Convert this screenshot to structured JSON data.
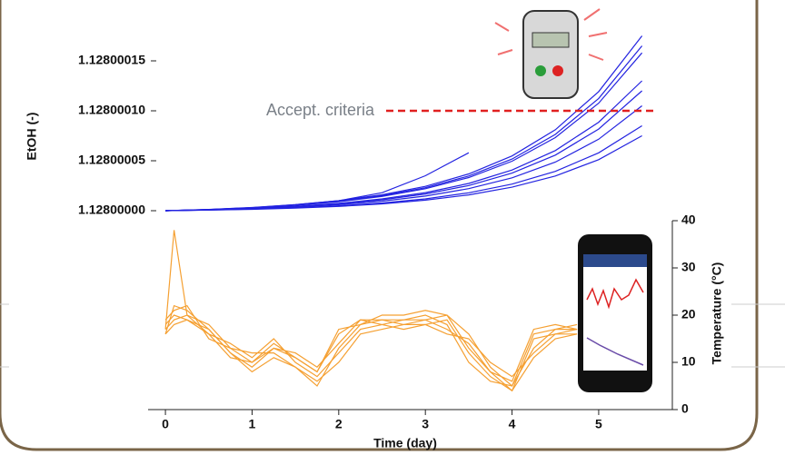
{
  "chart_data": [
    {
      "type": "line",
      "ylabel": "EtOH  (-)",
      "x": [
        0,
        0.5,
        1,
        1.5,
        2,
        2.5,
        3,
        3.5,
        4,
        4.5,
        5,
        5.5
      ],
      "xlim": [
        -0.2,
        5.85
      ],
      "ylim": [
        1.12799999,
        1.12800018
      ],
      "yticks": [
        {
          "value": 1.128,
          "label": "1.12800000"
        },
        {
          "value": 1.12800005,
          "label": "1.12800005"
        },
        {
          "value": 1.1280001,
          "label": "1.12800010"
        },
        {
          "value": 1.12800015,
          "label": "1.12800015"
        }
      ],
      "threshold": 1.1280001,
      "threshold_label": "Accept. criteria",
      "threshold_color": "#e02020",
      "series": [
        {
          "color": "#2323e0",
          "values": [
            1.128,
            1.1280000013,
            1.1280000032,
            1.128000006,
            1.12800001,
            1.1280000159,
            1.1280000244,
            1.1280000368,
            1.1280000548,
            1.128000081,
            1.1280001192,
            1.128000175
          ]
        },
        {
          "color": "#2323e0",
          "values": [
            1.128,
            1.1280000012,
            1.128000003,
            1.1280000056,
            1.1280000094,
            1.128000015,
            1.128000023,
            1.1280000347,
            1.1280000517,
            1.1280000764,
            1.1280001124,
            1.128000165
          ]
        },
        {
          "color": "#2323e0",
          "values": [
            1.128,
            1.1280000012,
            1.1280000029,
            1.1280000054,
            1.128000009,
            1.1280000143,
            1.128000022,
            1.1280000332,
            1.1280000495,
            1.1280000732,
            1.1280001076,
            1.128000158
          ]
        },
        {
          "color": "#2323e0",
          "values": [
            1.128,
            1.128000001,
            1.1280000024,
            1.1280000044,
            1.1280000074,
            1.1280000118,
            1.1280000181,
            1.1280000273,
            1.1280000407,
            1.1280000602,
            1.1280000885,
            1.12800013
          ]
        },
        {
          "color": "#2323e0",
          "values": [
            1.128,
            1.1280000009,
            1.1280000022,
            1.1280000041,
            1.1280000069,
            1.1280000109,
            1.1280000167,
            1.1280000252,
            1.1280000376,
            1.1280000556,
            1.1280000817,
            1.12800012
          ]
        },
        {
          "color": "#2323e0",
          "values": [
            1.128,
            1.1280000008,
            1.1280000019,
            1.1280000036,
            1.128000006,
            1.1280000095,
            1.1280000146,
            1.1280000221,
            1.1280000329,
            1.1280000486,
            1.1280000715,
            1.128000105
          ]
        },
        {
          "color": "#2323e0",
          "values": [
            1.128,
            1.1280000006,
            1.1280000016,
            1.1280000029,
            1.1280000049,
            1.1280000077,
            1.1280000118,
            1.1280000179,
            1.1280000266,
            1.1280000394,
            1.1280000579,
            1.128000085
          ]
        },
        {
          "color": "#2323e0",
          "values": [
            1.128,
            1.1280000006,
            1.1280000014,
            1.1280000026,
            1.1280000043,
            1.1280000068,
            1.1280000105,
            1.1280000158,
            1.1280000235,
            1.1280000347,
            1.1280000511,
            1.128000075
          ]
        },
        {
          "color": "#2323e0",
          "values": [
            1.128,
            1.128000001,
            1.128000003,
            1.128000006,
            1.12800001,
            1.128000018,
            1.128000035,
            1.128000058,
            null,
            null,
            null,
            null
          ]
        }
      ]
    },
    {
      "type": "line",
      "xlabel": "Time (day)",
      "ylabel": "Temperature (°C)",
      "x": [
        0,
        0.1,
        0.25,
        0.5,
        0.75,
        1,
        1.25,
        1.5,
        1.75,
        2,
        2.25,
        2.5,
        2.75,
        3,
        3.25,
        3.5,
        3.75,
        4,
        4.25,
        4.5,
        4.75
      ],
      "xlim": [
        -0.2,
        5.85
      ],
      "xticks": [
        0,
        1,
        2,
        3,
        4,
        5
      ],
      "ylim": [
        0,
        40
      ],
      "yticks": [
        0,
        10,
        20,
        30,
        40
      ],
      "series": [
        {
          "color": "#f5a032",
          "values": [
            17,
            38,
            20,
            18,
            13,
            10,
            14,
            11,
            8,
            17,
            18,
            19,
            19,
            19,
            20,
            16,
            9,
            5,
            16,
            17,
            17
          ]
        },
        {
          "color": "#f5a032",
          "values": [
            16,
            22,
            21,
            17,
            12,
            9,
            13,
            12,
            9,
            14,
            19,
            19,
            18,
            18,
            19,
            12,
            7,
            4,
            15,
            16,
            17
          ]
        },
        {
          "color": "#f5a032",
          "values": [
            18,
            20,
            19,
            16,
            14,
            11,
            15,
            10,
            7,
            12,
            17,
            18,
            19,
            20,
            18,
            10,
            6,
            5,
            13,
            17,
            18
          ]
        },
        {
          "color": "#f5a032",
          "values": [
            19,
            21,
            22,
            15,
            13,
            12,
            12,
            9,
            6,
            10,
            16,
            17,
            18,
            19,
            17,
            14,
            8,
            6,
            17,
            18,
            17
          ]
        },
        {
          "color": "#f5a032",
          "values": [
            17,
            19,
            20,
            16,
            11,
            10,
            13,
            11,
            8,
            16,
            19,
            18,
            17,
            18,
            16,
            15,
            10,
            7,
            12,
            16,
            16
          ]
        },
        {
          "color": "#f5a032",
          "values": [
            16,
            18,
            19,
            17,
            12,
            8,
            11,
            9,
            5,
            13,
            18,
            20,
            20,
            21,
            20,
            13,
            8,
            4,
            11,
            15,
            16
          ]
        }
      ]
    }
  ]
}
